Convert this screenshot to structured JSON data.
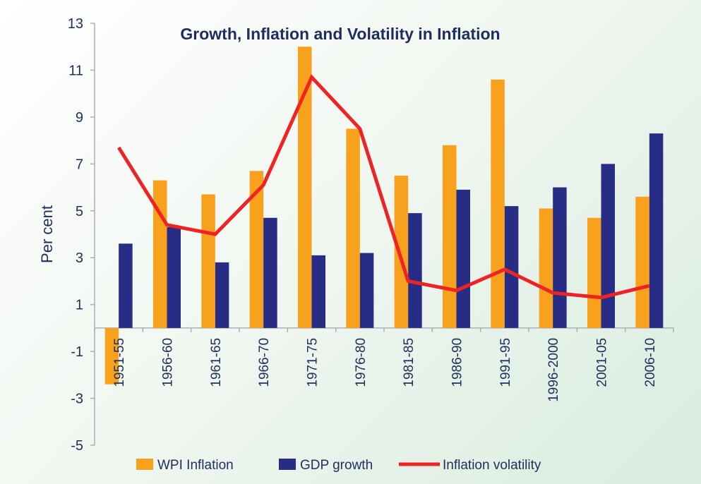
{
  "chart_data": {
    "type": "bar",
    "title": "Growth, Inflation and Volatility in Inflation",
    "xlabel": "",
    "ylabel": "Per cent",
    "ylim": [
      -5,
      13
    ],
    "yticks": [
      13,
      11,
      9,
      7,
      5,
      3,
      1,
      -1,
      -3,
      -5
    ],
    "grid": false,
    "legend_position": "bottom",
    "categories": [
      "1951-55",
      "1956-60",
      "1961-65",
      "1966-70",
      "1971-75",
      "1976-80",
      "1981-85",
      "1986-90",
      "1991-95",
      "1996-2000",
      "2001-05",
      "2006-10"
    ],
    "series": [
      {
        "name": "WPI Inflation",
        "type": "bar",
        "color": "#f7a11c",
        "values": [
          -2.4,
          6.3,
          5.7,
          6.7,
          12.0,
          8.5,
          6.5,
          7.8,
          10.6,
          5.1,
          4.7,
          5.6
        ]
      },
      {
        "name": "GDP growth",
        "type": "bar",
        "color": "#272d84",
        "values": [
          3.6,
          4.3,
          2.8,
          4.7,
          3.1,
          3.2,
          4.9,
          5.9,
          5.2,
          6.0,
          7.0,
          8.3
        ]
      },
      {
        "name": "Inflation volatility",
        "type": "line",
        "color": "#ee2424",
        "values": [
          7.7,
          4.4,
          4.0,
          6.1,
          10.7,
          8.5,
          2.0,
          1.6,
          2.5,
          1.5,
          1.3,
          1.8
        ]
      }
    ]
  },
  "colors": {
    "text": "#1f2d5c",
    "axis": "#a9b0b8"
  }
}
